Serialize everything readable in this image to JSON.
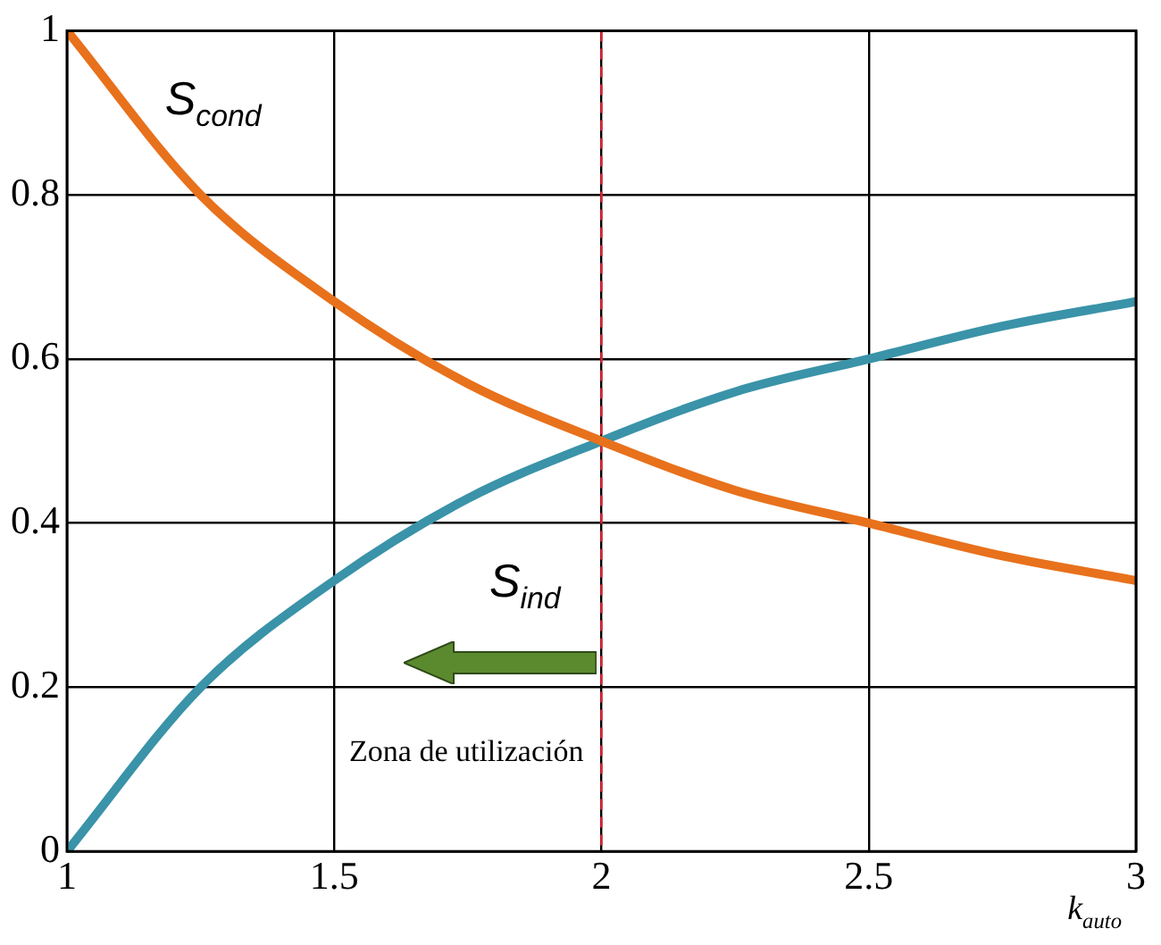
{
  "chart_data": {
    "type": "line",
    "xlabel": "k$_{auto}$",
    "x": [
      1,
      1.25,
      1.5,
      1.75,
      2,
      2.25,
      2.5,
      2.75,
      3
    ],
    "series": [
      {
        "name": "S$_{cond}$",
        "color": "#e8711c",
        "values": [
          1,
          0.8,
          0.67,
          0.57,
          0.5,
          0.44,
          0.4,
          0.36,
          0.33
        ]
      },
      {
        "name": "S$_{ind}$",
        "color": "#3a93a8",
        "values": [
          0,
          0.2,
          0.33,
          0.43,
          0.5,
          0.56,
          0.6,
          0.64,
          0.67
        ]
      }
    ],
    "xlim": [
      1,
      3
    ],
    "xticks": [
      1,
      1.5,
      2,
      2.5,
      3
    ],
    "ylim": [
      0,
      1
    ],
    "yticks": [
      0,
      0.2,
      0.4,
      0.6,
      0.8,
      1
    ],
    "ref_lines": [
      {
        "axis": "x",
        "value": 2,
        "color": "#e8283a",
        "line_style": "dashed"
      }
    ],
    "annotations": [
      "Zona de utilización"
    ],
    "grid": true,
    "legend": false,
    "marker": "none",
    "line_style": "solid"
  }
}
